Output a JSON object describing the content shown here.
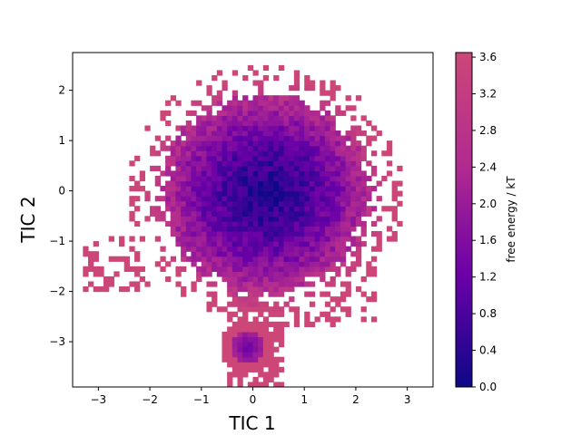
{
  "chart_data": {
    "type": "heatmap",
    "title": "",
    "xlabel": "TIC 1",
    "ylabel": "TIC 2",
    "xlim": [
      -3.5,
      3.5
    ],
    "ylim": [
      -3.9,
      2.75
    ],
    "xticks": [
      -3,
      -2,
      -1,
      0,
      1,
      2,
      3
    ],
    "yticks": [
      -3,
      -2,
      -1,
      0,
      1,
      2
    ],
    "colorbar": {
      "label": "free energy / kT",
      "range": [
        0.0,
        3.65
      ],
      "ticks": [
        "0.0",
        "0.4",
        "0.8",
        "1.2",
        "1.6",
        "2.0",
        "2.4",
        "2.8",
        "3.2",
        "3.6"
      ],
      "colormap": "plasma-truncated",
      "colors": [
        "#0d0887",
        "#6a00a8",
        "#b12a90",
        "#cc4778"
      ]
    },
    "grid": false,
    "description_of_field": "free-energy minimum near (0.2, -0.1); values rise radially to ~3.6 kT at the edges; white = no samples",
    "minimum": {
      "x": 0.2,
      "y": -0.1,
      "value": 0.0
    },
    "secondary_minimum": {
      "x": -0.15,
      "y": -3.15,
      "value": 1.4
    }
  }
}
